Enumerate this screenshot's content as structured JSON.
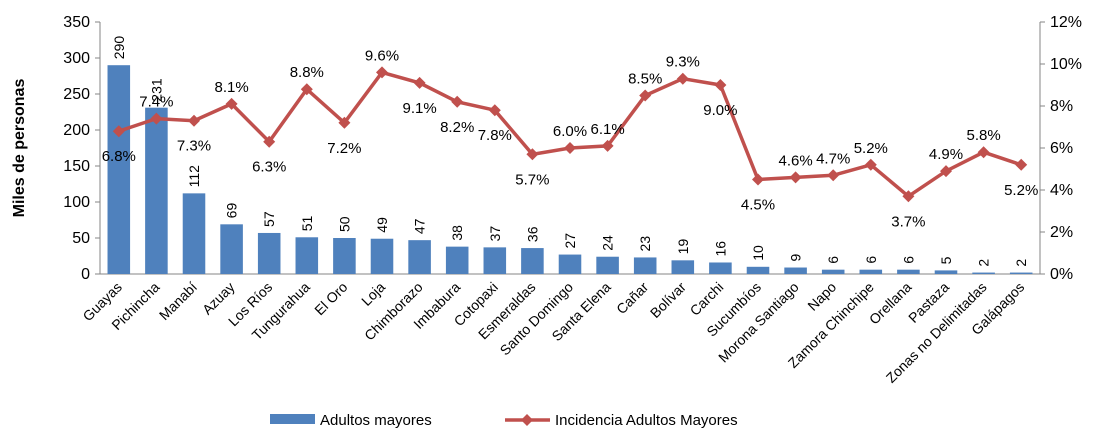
{
  "chart_data": {
    "type": "bar",
    "y_label": "Miles de personas",
    "categories": [
      "Guayas",
      "Pichincha",
      "Manabí",
      "Azuay",
      "Los Ríos",
      "Tungurahua",
      "El Oro",
      "Loja",
      "Chimborazo",
      "Imbabura",
      "Cotopaxi",
      "Esmeraldas",
      "Santo Domingo",
      "Santa Elena",
      "Cañar",
      "Bolívar",
      "Carchi",
      "Sucumbíos",
      "Morona Santiago",
      "Napo",
      "Zamora Chinchipe",
      "Orellana",
      "Pastaza",
      "Zonas no Delimitadas",
      "Galápagos"
    ],
    "series": [
      {
        "name": "Adultos mayores",
        "type": "bar",
        "color": "#4f81bd",
        "values": [
          290,
          231,
          112,
          69,
          57,
          51,
          50,
          49,
          47,
          38,
          37,
          36,
          27,
          24,
          23,
          19,
          16,
          10,
          9,
          6,
          6,
          6,
          5,
          2,
          2
        ]
      },
      {
        "name": "Incidencia Adultos Mayores",
        "type": "line",
        "axis": "y2",
        "color": "#c0504d",
        "values": [
          6.8,
          7.4,
          7.3,
          8.1,
          6.3,
          8.8,
          7.2,
          9.6,
          9.1,
          8.2,
          7.8,
          5.7,
          6.0,
          6.1,
          8.5,
          9.3,
          9.0,
          4.5,
          4.6,
          4.7,
          5.2,
          3.7,
          4.9,
          5.8,
          5.2
        ],
        "value_labels": [
          "6.8%",
          "7.4%",
          "7.3%",
          "8.1%",
          "6.3%",
          "8.8%",
          "7.2%",
          "9.6%",
          "9.1%",
          "8.2%",
          "7.8%",
          "5.7%",
          "6.0%",
          "6.1%",
          "8.5%",
          "9.3%",
          "9.0%",
          "4.5%",
          "4.6%",
          "4.7%",
          "5.2%",
          "3.7%",
          "4.9%",
          "5.8%",
          "5.2%"
        ]
      }
    ],
    "ylim": [
      0,
      350
    ],
    "yticks": [
      0,
      50,
      100,
      150,
      200,
      250,
      300,
      350
    ],
    "y2lim": [
      0,
      12
    ],
    "y2ticks": [
      {
        "value": 0,
        "label": "0%"
      },
      {
        "value": 2,
        "label": "2%"
      },
      {
        "value": 4,
        "label": "4%"
      },
      {
        "value": 6,
        "label": "6%"
      },
      {
        "value": 8,
        "label": "8%"
      },
      {
        "value": 10,
        "label": "10%"
      },
      {
        "value": 12,
        "label": "12%"
      }
    ],
    "legend": "bottom"
  }
}
